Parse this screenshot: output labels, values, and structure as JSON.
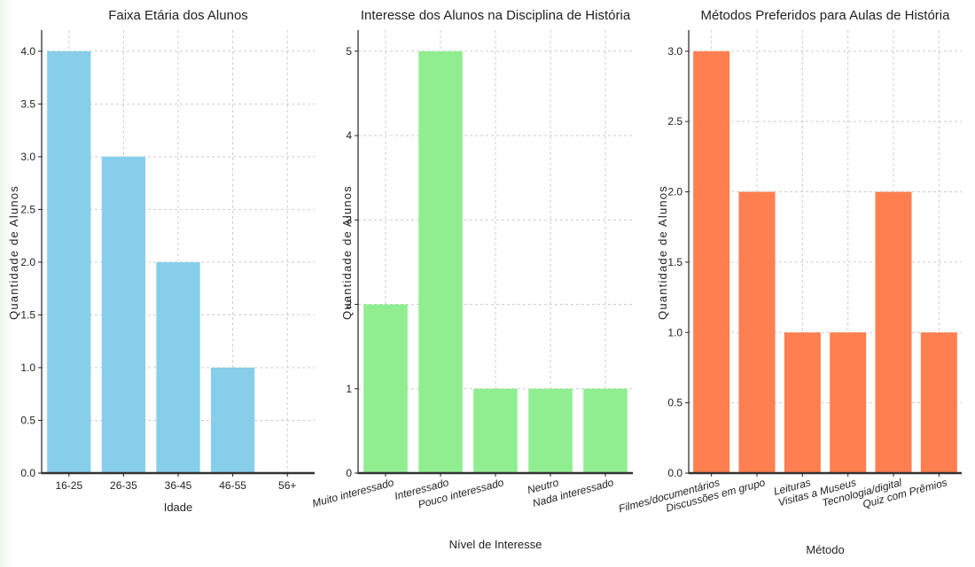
{
  "chart_data": [
    {
      "type": "bar",
      "title": "Faixa Etária dos Alunos",
      "xlabel": "Idade",
      "ylabel": "Quantidade de Alunos",
      "categories": [
        "16-25",
        "26-35",
        "36-45",
        "46-55",
        "56+"
      ],
      "values": [
        4,
        3,
        2,
        1,
        0
      ],
      "ylim": [
        0,
        4.2
      ],
      "yticks": [
        "0.0",
        "0.5",
        "1.0",
        "1.5",
        "2.0",
        "2.5",
        "3.0",
        "3.5",
        "4.0"
      ],
      "color": "#87CEEB",
      "grid": true
    },
    {
      "type": "bar",
      "title": "Interesse dos Alunos na Disciplina de História",
      "xlabel": "Nível de Interesse",
      "ylabel": "Quantidade de Alunos",
      "categories": [
        "Muito interessado",
        "Interessado",
        "Pouco interessado",
        "Neutro",
        "Nada interessado"
      ],
      "values": [
        2,
        5,
        1,
        1,
        1
      ],
      "ylim": [
        0,
        5.25
      ],
      "yticks": [
        "0",
        "1",
        "2",
        "3",
        "4",
        "5"
      ],
      "color": "#90EE90",
      "grid": true
    },
    {
      "type": "bar",
      "title": "Métodos Preferidos para Aulas de História",
      "xlabel": "Método",
      "ylabel": "Quantidade de Alunos",
      "categories": [
        "Filmes/documentários",
        "Discussões em grupo",
        "Leituras",
        "Visitas a Museus",
        "Tecnologia/digital",
        "Quiz com Prêmios"
      ],
      "values": [
        3,
        2,
        1,
        1,
        2,
        1
      ],
      "ylim": [
        0,
        3.15
      ],
      "yticks": [
        "0.0",
        "0.5",
        "1.0",
        "1.5",
        "2.0",
        "2.5",
        "3.0"
      ],
      "color": "#FF7F50",
      "grid": true
    }
  ]
}
